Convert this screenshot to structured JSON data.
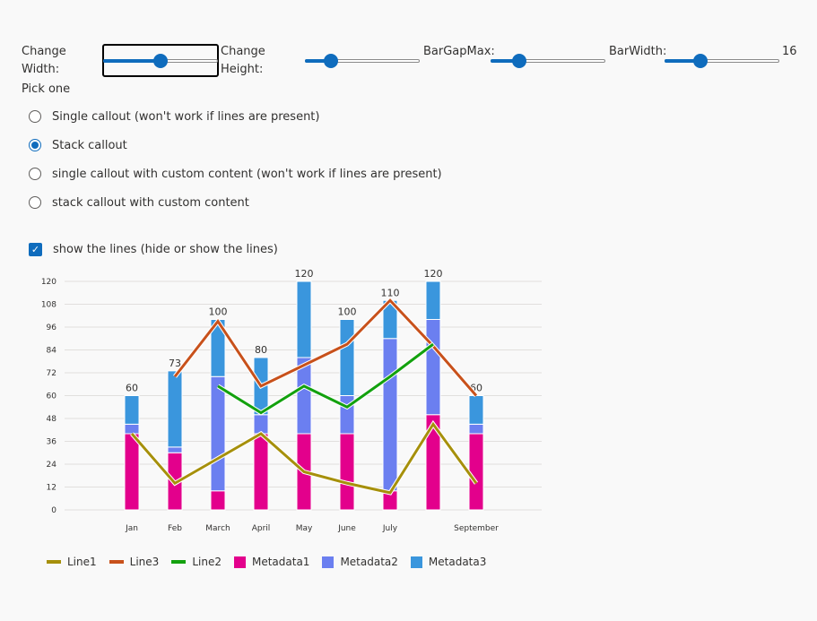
{
  "controls": {
    "change_width_label": "Change Width:",
    "change_height_label": "Change Height:",
    "bar_gap_max_label": "BarGapMax:",
    "bar_width_label": "BarWidth:",
    "bar_width_value": "16",
    "change_width_level": 0.5,
    "change_height_level": 0.23,
    "bar_gap_max_level": 0.25,
    "bar_width_level": 0.31
  },
  "options": {
    "heading": "Pick one",
    "items": [
      {
        "label": "Single callout (won't work if lines are present)",
        "checked": false
      },
      {
        "label": "Stack callout",
        "checked": true
      },
      {
        "label": "single callout with custom content (won't work if lines are present)",
        "checked": false
      },
      {
        "label": "stack callout with custom content",
        "checked": false
      }
    ]
  },
  "show_lines": {
    "label": "show the lines (hide or show the lines)",
    "checked": true
  },
  "chart_data": {
    "type": "bar",
    "stacked": true,
    "categories": [
      "Jan",
      "Feb",
      "March",
      "April",
      "May",
      "June",
      "July",
      "",
      "September"
    ],
    "ylim": [
      0,
      120
    ],
    "yticks": [
      0,
      12,
      24,
      36,
      48,
      60,
      72,
      84,
      96,
      108,
      120
    ],
    "grid": true,
    "legend_position": "bottom-left",
    "totals": [
      "60",
      "73",
      "100",
      "80",
      "120",
      "100",
      "110",
      "120",
      "60"
    ],
    "series": [
      {
        "name": "Metadata1",
        "color": "#e3008c",
        "values": [
          40,
          30,
          10,
          40,
          40,
          40,
          10,
          50,
          40
        ]
      },
      {
        "name": "Metadata2",
        "color": "#6b7ff0",
        "values": [
          5,
          3,
          60,
          10,
          40,
          20,
          80,
          50,
          5
        ]
      },
      {
        "name": "Metadata3",
        "color": "#3a96dd",
        "values": [
          15,
          40,
          30,
          30,
          40,
          40,
          20,
          20,
          15
        ]
      }
    ],
    "lines": [
      {
        "name": "Line1",
        "color": "#a6900b",
        "values": [
          40,
          14,
          27,
          40,
          20,
          14,
          9,
          45,
          14
        ]
      },
      {
        "name": "Line3",
        "color": "#c8511b",
        "values": [
          null,
          70,
          99,
          65,
          76,
          87,
          110,
          86,
          60
        ]
      },
      {
        "name": "Line2",
        "color": "#13a10e",
        "values": [
          null,
          null,
          65,
          51,
          65,
          54,
          70,
          87,
          null
        ]
      }
    ],
    "legend_order": [
      "Line1",
      "Line3",
      "Line2",
      "Metadata1",
      "Metadata2",
      "Metadata3"
    ]
  }
}
